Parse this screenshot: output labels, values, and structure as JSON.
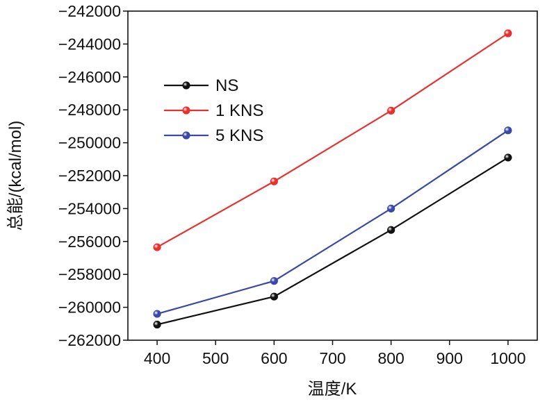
{
  "chart_data": {
    "type": "line",
    "title": "",
    "xlabel": "温度/K",
    "ylabel": "总能/(kcal/mol)",
    "x": [
      400,
      600,
      800,
      1000
    ],
    "xlim": [
      350,
      1050
    ],
    "ylim": [
      -262000,
      -242000
    ],
    "xticks": [
      400,
      500,
      600,
      700,
      800,
      900,
      1000
    ],
    "yticks": [
      -262000,
      -260000,
      -258000,
      -256000,
      -254000,
      -252000,
      -250000,
      -248000,
      -246000,
      -244000,
      -242000
    ],
    "xtick_labels": [
      "400",
      "500",
      "600",
      "700",
      "800",
      "900",
      "1000"
    ],
    "ytick_labels": [
      "−262000",
      "−260000",
      "−258000",
      "−256000",
      "−254000",
      "−252000",
      "−250000",
      "−248000",
      "−246000",
      "−244000",
      "−242000"
    ],
    "grid": false,
    "legend_position": "upper-left",
    "series": [
      {
        "name": "NS",
        "color": "#111111",
        "values": [
          -261050,
          -259350,
          -255300,
          -250900
        ]
      },
      {
        "name": "1 KNS",
        "color": "#e8302f",
        "values": [
          -256350,
          -252350,
          -248050,
          -243350
        ]
      },
      {
        "name": "5 KNS",
        "color": "#3a48a6",
        "values": [
          -260400,
          -258400,
          -254000,
          -249250
        ]
      }
    ]
  }
}
